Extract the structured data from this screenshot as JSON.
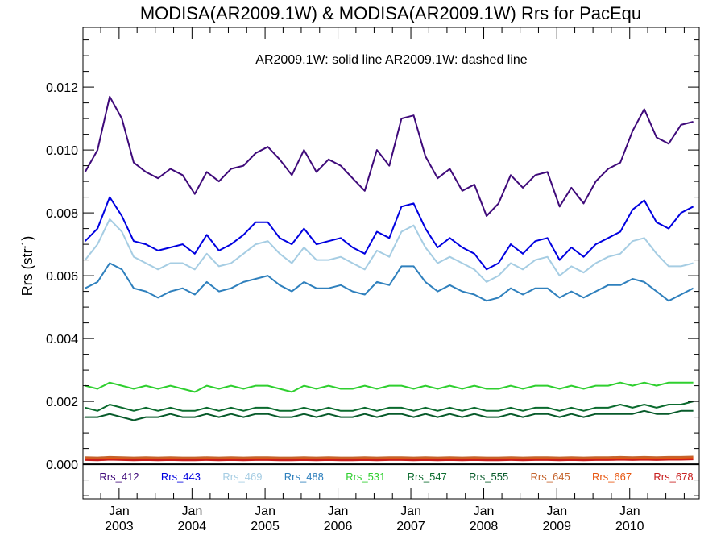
{
  "chart_data": {
    "type": "line",
    "title": "MODISA(AR2009.1W) & MODISA(AR2009.1W)  Rrs for PacEqu",
    "annotation": "AR2009.1W: solid line   AR2009.1W: dashed line",
    "ylabel_main": "Rrs (str",
    "ylabel_sup": "-1",
    "ylabel_end": ")",
    "ylim": [
      -0.0011,
      0.0139
    ],
    "y_ticks": [
      "0.000",
      "0.002",
      "0.004",
      "0.006",
      "0.008",
      "0.010",
      "0.012"
    ],
    "x_ticks": [
      {
        "month": "Jan",
        "year": "2003",
        "date": "2003-01-01"
      },
      {
        "month": "Jan",
        "year": "2004",
        "date": "2004-01-01"
      },
      {
        "month": "Jan",
        "year": "2005",
        "date": "2005-01-01"
      },
      {
        "month": "Jan",
        "year": "2006",
        "date": "2006-01-01"
      },
      {
        "month": "Jan",
        "year": "2007",
        "date": "2007-01-01"
      },
      {
        "month": "Jan",
        "year": "2008",
        "date": "2008-01-01"
      },
      {
        "month": "Jan",
        "year": "2009",
        "date": "2009-01-01"
      },
      {
        "month": "Jan",
        "year": "2010",
        "date": "2010-01-01"
      }
    ],
    "x_range": [
      "2002-07-04",
      "2010-12-15"
    ],
    "zero_line": true,
    "grid": false,
    "x": [
      "2002-07",
      "2002-09",
      "2002-11",
      "2003-01",
      "2003-03",
      "2003-05",
      "2003-07",
      "2003-09",
      "2003-11",
      "2004-01",
      "2004-03",
      "2004-05",
      "2004-07",
      "2004-09",
      "2004-11",
      "2005-01",
      "2005-03",
      "2005-05",
      "2005-07",
      "2005-09",
      "2005-11",
      "2006-01",
      "2006-03",
      "2006-05",
      "2006-07",
      "2006-09",
      "2006-11",
      "2007-01",
      "2007-03",
      "2007-05",
      "2007-07",
      "2007-09",
      "2007-11",
      "2008-01",
      "2008-03",
      "2008-05",
      "2008-07",
      "2008-09",
      "2008-11",
      "2009-01",
      "2009-03",
      "2009-05",
      "2009-07",
      "2009-09",
      "2009-11",
      "2010-01",
      "2010-03",
      "2010-05",
      "2010-07",
      "2010-09",
      "2010-11"
    ],
    "series": [
      {
        "name": "Rrs_412",
        "color": "#3f0a7a",
        "values": [
          0.0093,
          0.01,
          0.0117,
          0.011,
          0.0096,
          0.0093,
          0.0091,
          0.0094,
          0.0092,
          0.0086,
          0.0093,
          0.009,
          0.0094,
          0.0095,
          0.0099,
          0.0101,
          0.0097,
          0.0092,
          0.01,
          0.0093,
          0.0097,
          0.0095,
          0.0091,
          0.0087,
          0.01,
          0.0095,
          0.011,
          0.0111,
          0.0098,
          0.0091,
          0.0094,
          0.0087,
          0.0089,
          0.0079,
          0.0083,
          0.0092,
          0.0088,
          0.0092,
          0.0093,
          0.0082,
          0.0088,
          0.0083,
          0.009,
          0.0094,
          0.0096,
          0.0106,
          0.0113,
          0.0104,
          0.0102,
          0.0108,
          0.0109
        ]
      },
      {
        "name": "Rrs_443",
        "color": "#0000e0",
        "values": [
          0.0071,
          0.0075,
          0.0085,
          0.0079,
          0.0071,
          0.007,
          0.0068,
          0.0069,
          0.007,
          0.0067,
          0.0073,
          0.0068,
          0.007,
          0.0073,
          0.0077,
          0.0077,
          0.0072,
          0.007,
          0.0075,
          0.007,
          0.0071,
          0.0072,
          0.0069,
          0.0067,
          0.0074,
          0.0072,
          0.0082,
          0.0083,
          0.0075,
          0.0069,
          0.0072,
          0.0069,
          0.0067,
          0.0062,
          0.0064,
          0.007,
          0.0067,
          0.0071,
          0.0072,
          0.0065,
          0.0069,
          0.0066,
          0.007,
          0.0072,
          0.0074,
          0.0081,
          0.0084,
          0.0077,
          0.0075,
          0.008,
          0.0082
        ]
      },
      {
        "name": "Rrs_469",
        "color": "#a6cde3",
        "values": [
          0.0065,
          0.007,
          0.0078,
          0.0074,
          0.0066,
          0.0064,
          0.0062,
          0.0064,
          0.0064,
          0.0062,
          0.0067,
          0.0063,
          0.0064,
          0.0067,
          0.007,
          0.0071,
          0.0067,
          0.0064,
          0.0069,
          0.0065,
          0.0065,
          0.0066,
          0.0064,
          0.0062,
          0.0068,
          0.0066,
          0.0074,
          0.0076,
          0.0069,
          0.0064,
          0.0066,
          0.0064,
          0.0062,
          0.0058,
          0.006,
          0.0064,
          0.0062,
          0.0065,
          0.0066,
          0.006,
          0.0063,
          0.0061,
          0.0064,
          0.0066,
          0.0067,
          0.0071,
          0.0072,
          0.0067,
          0.0063,
          0.0063,
          0.0064
        ]
      },
      {
        "name": "Rrs_488",
        "color": "#2f80bd",
        "values": [
          0.0056,
          0.0058,
          0.0064,
          0.0062,
          0.0056,
          0.0055,
          0.0053,
          0.0055,
          0.0056,
          0.0054,
          0.0058,
          0.0055,
          0.0056,
          0.0058,
          0.0059,
          0.006,
          0.0057,
          0.0055,
          0.0058,
          0.0056,
          0.0056,
          0.0057,
          0.0055,
          0.0054,
          0.0058,
          0.0057,
          0.0063,
          0.0063,
          0.0058,
          0.0055,
          0.0057,
          0.0055,
          0.0054,
          0.0052,
          0.0053,
          0.0056,
          0.0054,
          0.0056,
          0.0056,
          0.0053,
          0.0055,
          0.0053,
          0.0055,
          0.0057,
          0.0057,
          0.0059,
          0.0058,
          0.0055,
          0.0052,
          0.0054,
          0.0056
        ]
      },
      {
        "name": "Rrs_531",
        "color": "#2fcf2f",
        "values": [
          0.0025,
          0.0024,
          0.0026,
          0.0025,
          0.0024,
          0.0025,
          0.0024,
          0.0025,
          0.0024,
          0.0023,
          0.0025,
          0.0024,
          0.0025,
          0.0024,
          0.0025,
          0.0025,
          0.0024,
          0.0023,
          0.0025,
          0.0024,
          0.0025,
          0.0024,
          0.0024,
          0.0025,
          0.0024,
          0.0025,
          0.0025,
          0.0024,
          0.0025,
          0.0024,
          0.0025,
          0.0024,
          0.0025,
          0.0024,
          0.0024,
          0.0025,
          0.0024,
          0.0025,
          0.0025,
          0.0024,
          0.0025,
          0.0024,
          0.0025,
          0.0025,
          0.0026,
          0.0025,
          0.0026,
          0.0025,
          0.0026,
          0.0026,
          0.0026
        ]
      },
      {
        "name": "Rrs_547",
        "color": "#0b6b2e",
        "values": [
          0.0018,
          0.0017,
          0.0019,
          0.0018,
          0.0017,
          0.0018,
          0.0017,
          0.0018,
          0.0017,
          0.0017,
          0.0018,
          0.0017,
          0.0018,
          0.0017,
          0.0018,
          0.0018,
          0.0017,
          0.0017,
          0.0018,
          0.0017,
          0.0018,
          0.0017,
          0.0017,
          0.0018,
          0.0017,
          0.0018,
          0.0018,
          0.0017,
          0.0018,
          0.0017,
          0.0018,
          0.0017,
          0.0018,
          0.0017,
          0.0017,
          0.0018,
          0.0017,
          0.0018,
          0.0018,
          0.0017,
          0.0018,
          0.0017,
          0.0018,
          0.0018,
          0.0019,
          0.0018,
          0.0019,
          0.0018,
          0.0019,
          0.0019,
          0.002
        ]
      },
      {
        "name": "Rrs_555",
        "color": "#075a2a",
        "values": [
          0.0015,
          0.0015,
          0.0016,
          0.0015,
          0.0014,
          0.0015,
          0.0015,
          0.0016,
          0.0015,
          0.0015,
          0.0016,
          0.0015,
          0.0016,
          0.0015,
          0.0016,
          0.0016,
          0.0015,
          0.0015,
          0.0016,
          0.0015,
          0.0016,
          0.0015,
          0.0015,
          0.0016,
          0.0015,
          0.0016,
          0.0016,
          0.0015,
          0.0016,
          0.0015,
          0.0016,
          0.0015,
          0.0016,
          0.0015,
          0.0015,
          0.0016,
          0.0015,
          0.0016,
          0.0016,
          0.0015,
          0.0016,
          0.0015,
          0.0016,
          0.0016,
          0.0016,
          0.0016,
          0.0017,
          0.0016,
          0.0016,
          0.0017,
          0.0017
        ]
      },
      {
        "name": "Rrs_645",
        "color": "#c4632c",
        "values": [
          0.00022,
          0.00021,
          0.00023,
          0.00022,
          0.00021,
          0.00022,
          0.00021,
          0.00022,
          0.00021,
          0.00021,
          0.00022,
          0.00021,
          0.00022,
          0.00021,
          0.00022,
          0.00022,
          0.00021,
          0.00021,
          0.00022,
          0.00021,
          0.00022,
          0.00021,
          0.00021,
          0.00022,
          0.00021,
          0.00022,
          0.00022,
          0.00021,
          0.00022,
          0.00021,
          0.00022,
          0.00021,
          0.00022,
          0.00021,
          0.00021,
          0.00022,
          0.00021,
          0.00022,
          0.00022,
          0.00021,
          0.00022,
          0.00021,
          0.00022,
          0.00022,
          0.00023,
          0.00022,
          0.00023,
          0.00022,
          0.00023,
          0.00023,
          0.00024
        ]
      },
      {
        "name": "Rrs_667",
        "color": "#e8560f",
        "values": [
          0.00017,
          0.00016,
          0.00018,
          0.00017,
          0.00016,
          0.00017,
          0.00016,
          0.00017,
          0.00016,
          0.00016,
          0.00017,
          0.00016,
          0.00017,
          0.00016,
          0.00017,
          0.00017,
          0.00016,
          0.00016,
          0.00017,
          0.00016,
          0.00017,
          0.00016,
          0.00016,
          0.00017,
          0.00016,
          0.00017,
          0.00017,
          0.00016,
          0.00017,
          0.00016,
          0.00017,
          0.00016,
          0.00017,
          0.00016,
          0.00016,
          0.00017,
          0.00016,
          0.00017,
          0.00017,
          0.00016,
          0.00017,
          0.00016,
          0.00017,
          0.00017,
          0.00018,
          0.00017,
          0.00018,
          0.00017,
          0.00018,
          0.00018,
          0.00019
        ]
      },
      {
        "name": "Rrs_678",
        "color": "#c81e1e",
        "values": [
          0.00014,
          0.00013,
          0.00015,
          0.00014,
          0.00013,
          0.00014,
          0.00013,
          0.00014,
          0.00013,
          0.00013,
          0.00014,
          0.00013,
          0.00014,
          0.00013,
          0.00014,
          0.00014,
          0.00013,
          0.00013,
          0.00014,
          0.00013,
          0.00014,
          0.00013,
          0.00013,
          0.00014,
          0.00013,
          0.00014,
          0.00014,
          0.00013,
          0.00014,
          0.00013,
          0.00014,
          0.00013,
          0.00014,
          0.00013,
          0.00013,
          0.00014,
          0.00013,
          0.00014,
          0.00014,
          0.00013,
          0.00014,
          0.00013,
          0.00014,
          0.00014,
          0.00015,
          0.00014,
          0.00015,
          0.00014,
          0.00015,
          0.00015,
          0.00016
        ]
      }
    ]
  }
}
